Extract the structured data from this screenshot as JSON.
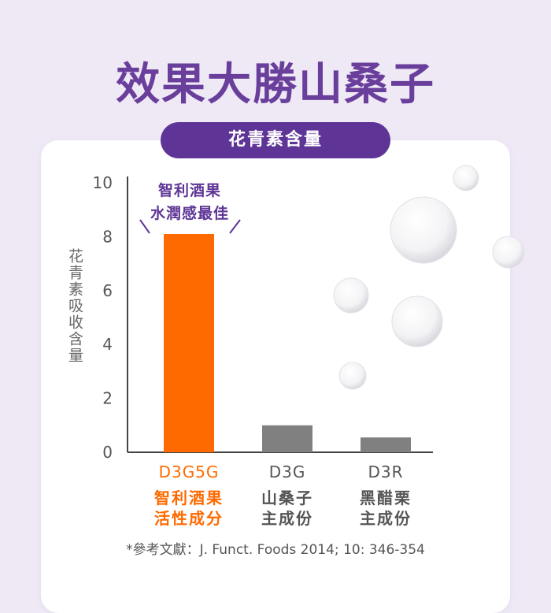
{
  "headline": "效果大勝山桑子",
  "pill_label": "花青素含量",
  "chart_data": {
    "type": "bar",
    "ylabel": "花青素吸收含量",
    "ylim": [
      0,
      10
    ],
    "yticks": [
      0,
      2,
      4,
      6,
      8,
      10
    ],
    "categories": [
      "D3G5G",
      "D3G",
      "D3R"
    ],
    "values": [
      8.1,
      1.0,
      0.55
    ],
    "colors": [
      "#ff6a00",
      "#808080",
      "#808080"
    ],
    "category_descriptions": [
      [
        "智利酒果",
        "活性成分"
      ],
      [
        "山桑子",
        "主成份"
      ],
      [
        "黑醋栗",
        "主成份"
      ]
    ],
    "label_colors": [
      "#ff6a00",
      "#555555",
      "#555555"
    ],
    "annotation": [
      "智利酒果",
      "水潤感最佳"
    ]
  },
  "reference": "*參考文獻：J. Funct. Foods 2014; 10: 346-354"
}
